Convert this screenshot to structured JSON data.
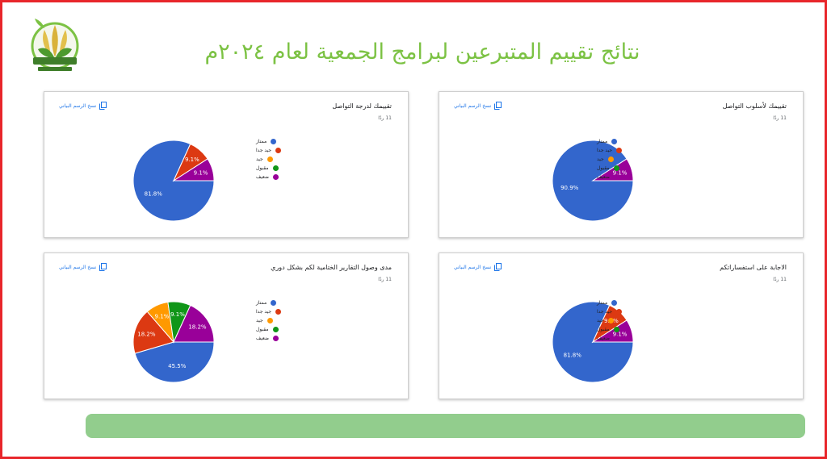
{
  "page": {
    "title": "نتائج تقييم المتبرعين لبرامج الجمعية لعام ٢٠٢٤م"
  },
  "legend_labels": [
    "ممتاز",
    "جيد جدا",
    "جيد",
    "مقبول",
    "ضعيف"
  ],
  "colors": [
    "#3366cc",
    "#dc3912",
    "#ff9900",
    "#109618",
    "#990099"
  ],
  "copy_label": "نسخ الرسم البياني",
  "chart_data": [
    {
      "type": "pie",
      "title": "تقييمك لأسلوب التواصل",
      "response_count": "11 ردًا",
      "categories": [
        "ممتاز",
        "جيد جدا",
        "جيد",
        "مقبول",
        "ضعيف"
      ],
      "values": [
        90.9,
        0,
        0,
        0,
        9.1
      ],
      "labels": [
        "90.9%",
        "",
        "",
        "",
        "9.1%"
      ],
      "legend_position": "right"
    },
    {
      "type": "pie",
      "title": "تقييمك لدرجة التواصل",
      "response_count": "11 ردًا",
      "categories": [
        "ممتاز",
        "جيد جدا",
        "جيد",
        "مقبول",
        "ضعيف"
      ],
      "values": [
        81.8,
        9.1,
        0,
        0,
        9.1
      ],
      "labels": [
        "81.8%",
        "9.1%",
        "",
        "",
        "9.1%"
      ],
      "legend_position": "right"
    },
    {
      "type": "pie",
      "title": "الاجابة على استفساراتكم",
      "response_count": "11 ردًا",
      "categories": [
        "ممتاز",
        "جيد جدا",
        "جيد",
        "مقبول",
        "ضعيف"
      ],
      "values": [
        81.8,
        9.1,
        0,
        0,
        9.1
      ],
      "labels": [
        "81.8%",
        "9.1%",
        "",
        "",
        "9.1%"
      ],
      "legend_position": "right"
    },
    {
      "type": "pie",
      "title": "مدى وصول التقارير الختامية لكم بشكل دوري",
      "response_count": "11 ردًا",
      "categories": [
        "ممتاز",
        "جيد جدا",
        "جيد",
        "مقبول",
        "ضعيف"
      ],
      "values": [
        45.5,
        18.2,
        9.1,
        9.1,
        18.2
      ],
      "labels": [
        "45.5%",
        "18.2%",
        "9.1%",
        "9.1%",
        "18.2%"
      ],
      "legend_position": "right"
    }
  ]
}
